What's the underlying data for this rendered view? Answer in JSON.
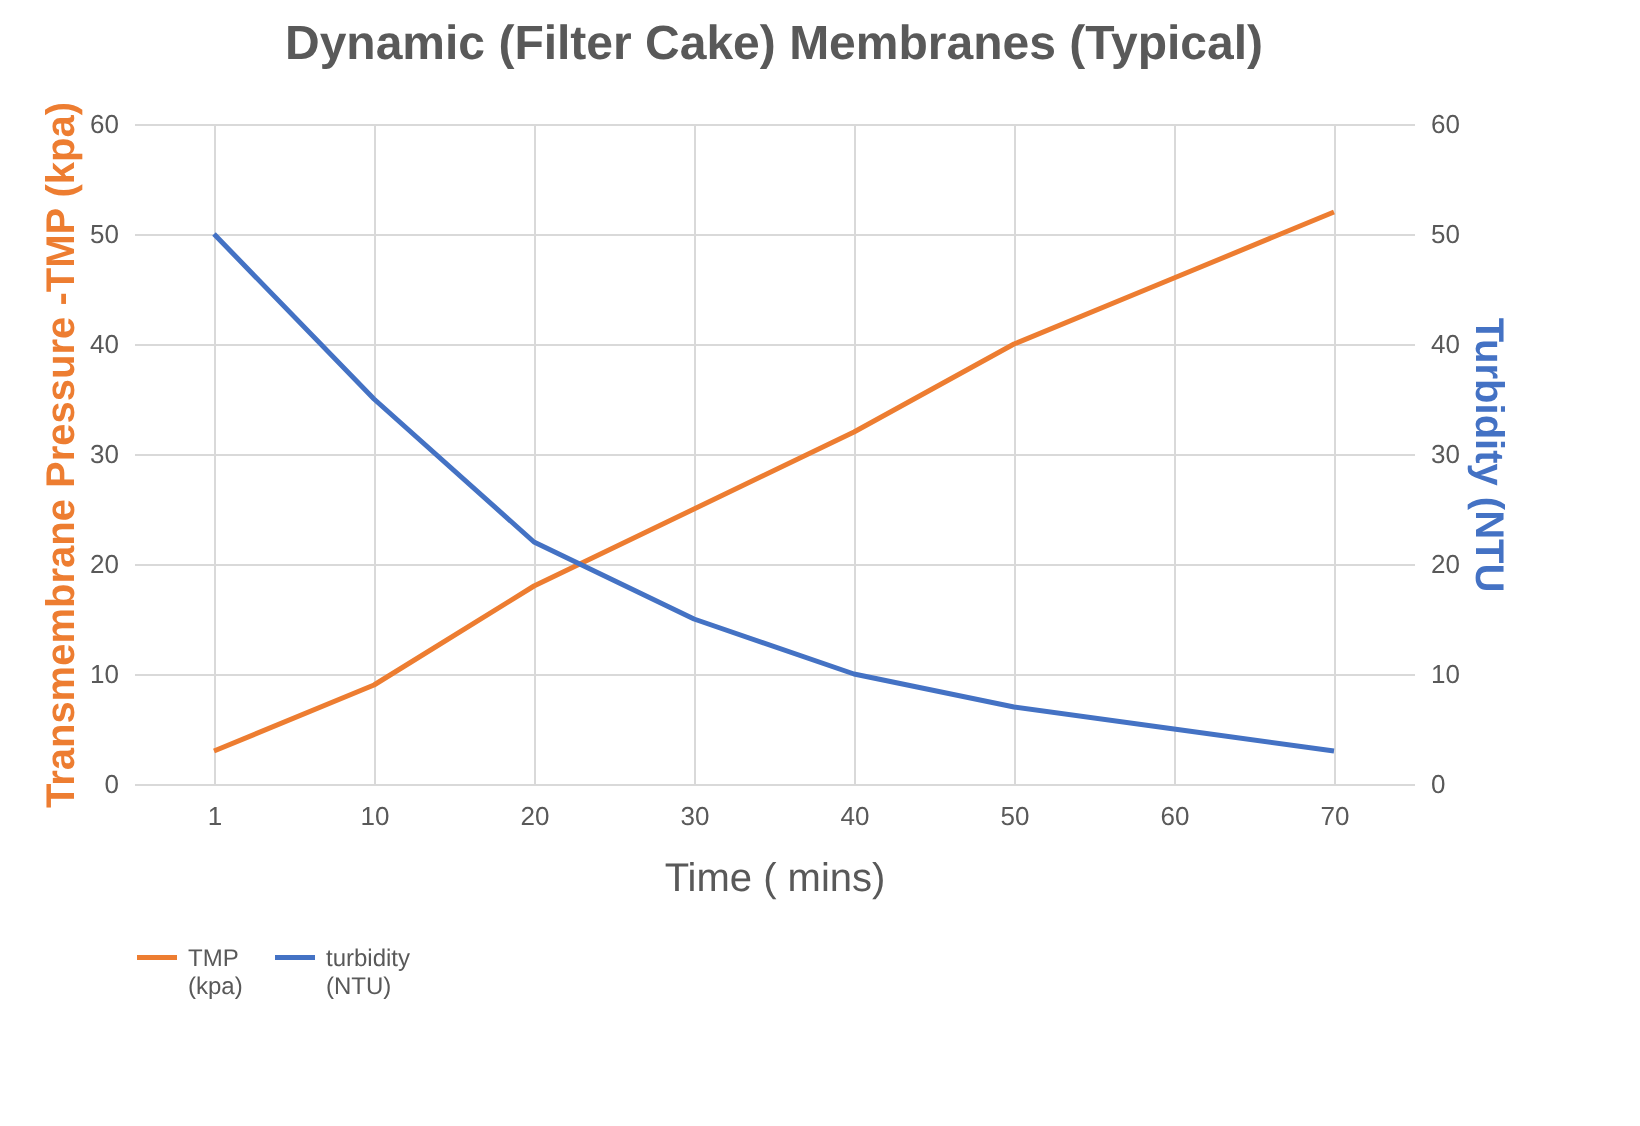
{
  "chart_data": {
    "type": "line",
    "title": "Dynamic (Filter Cake) Membranes (Typical)",
    "xlabel": "Time (  mins)",
    "ylabel": "Transmembrane Pressure -TMP (kpa)",
    "y2label": "Turbidity (NTU",
    "categories": [
      "1",
      "10",
      "20",
      "30",
      "40",
      "50",
      "60",
      "70"
    ],
    "series": [
      {
        "name": "TMP (kpa)",
        "color": "#ed7d31",
        "values": [
          3,
          9,
          18,
          25,
          32,
          40,
          46,
          52
        ]
      },
      {
        "name": "turbidity (NTU)",
        "color": "#4472c4",
        "axis": "y2",
        "values": [
          50,
          35,
          22,
          15,
          10,
          7,
          5,
          3
        ]
      }
    ],
    "ylim": [
      0,
      60
    ],
    "yticks": [
      0,
      10,
      20,
      30,
      40,
      50,
      60
    ],
    "y2lim": [
      0,
      60
    ],
    "y2ticks": [
      0,
      10,
      20,
      30,
      40,
      50,
      60
    ],
    "grid": true,
    "legend": "bottom",
    "marker": "none",
    "line_style": "solid"
  }
}
